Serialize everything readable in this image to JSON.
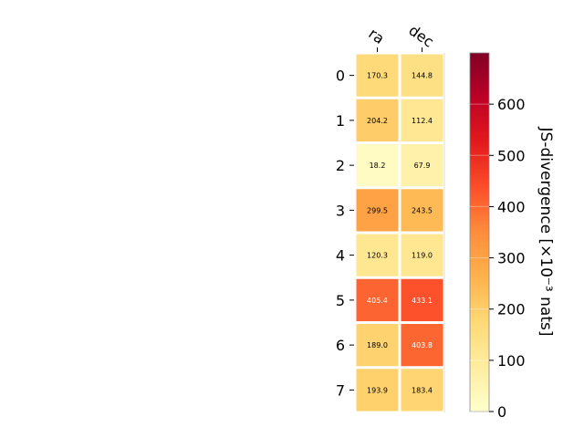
{
  "chart_data": {
    "type": "heatmap",
    "columns": [
      "ra",
      "dec"
    ],
    "rows": [
      "0",
      "1",
      "2",
      "3",
      "4",
      "5",
      "6",
      "7"
    ],
    "values": [
      [
        170.3,
        144.8
      ],
      [
        204.2,
        112.4
      ],
      [
        18.2,
        67.9
      ],
      [
        299.5,
        243.5
      ],
      [
        120.3,
        119.0
      ],
      [
        405.4,
        433.1
      ],
      [
        189.0,
        403.8
      ],
      [
        193.9,
        183.4
      ]
    ],
    "value_labels": [
      [
        "170.3",
        "144.8"
      ],
      [
        "204.2",
        "112.4"
      ],
      [
        "18.2",
        "67.9"
      ],
      [
        "299.5",
        "243.5"
      ],
      [
        "120.3",
        "119.0"
      ],
      [
        "405.4",
        "433.1"
      ],
      [
        "189.0",
        "403.8"
      ],
      [
        "193.9",
        "183.4"
      ]
    ],
    "colorbar": {
      "label": "JS-divergence [×10⁻³ nats]",
      "range": [
        0,
        700
      ],
      "ticks": [
        0,
        100,
        200,
        300,
        400,
        500,
        600
      ],
      "colormap": "YlOrRd"
    }
  }
}
